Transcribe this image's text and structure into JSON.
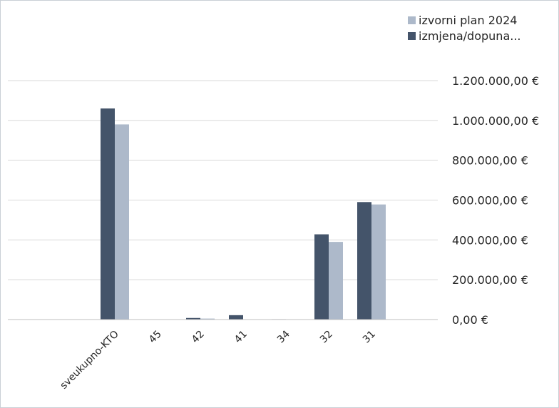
{
  "chart_data": {
    "type": "bar",
    "title": "",
    "xlabel": "",
    "ylabel": "",
    "categories": [
      "",
      "",
      "sveukupno-KTO",
      "45",
      "42",
      "41",
      "34",
      "32",
      "31"
    ],
    "series": [
      {
        "name": "izmjena/dopuna...",
        "color": "#44546a",
        "values": [
          null,
          null,
          1060000,
          1500,
          8000,
          22000,
          2000,
          428000,
          590000
        ]
      },
      {
        "name": "izvorni plan 2024",
        "color": "#adb9ca",
        "values": [
          null,
          null,
          980000,
          1000,
          5000,
          0,
          0,
          390000,
          578000
        ]
      }
    ],
    "ylim": [
      0,
      1200000
    ],
    "yticks": [
      0,
      200000,
      400000,
      600000,
      800000,
      1000000,
      1200000
    ],
    "ytick_labels": [
      "0,00 €",
      "200.000,00 €",
      "400.000,00 €",
      "600.000,00 €",
      "800.000,00 €",
      "1.000.000,00 €",
      "1.200.000,00 €"
    ],
    "y_axis_position": "right",
    "grid": true,
    "legend_position": "top-right",
    "legend": [
      {
        "label": "izvorni plan 2024",
        "color": "#adb9ca"
      },
      {
        "label": "izmjena/dopuna...",
        "color": "#44546a"
      }
    ]
  }
}
